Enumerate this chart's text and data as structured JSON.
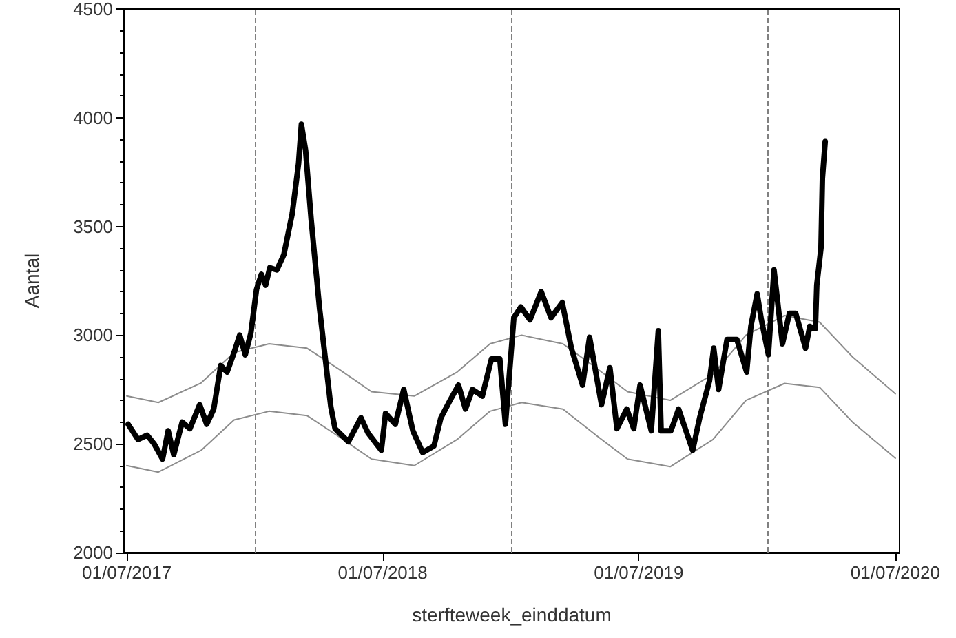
{
  "chart_data": {
    "type": "line",
    "xlabel": "sterfteweek_einddatum",
    "ylabel": "Aantal",
    "xlim": [
      "2017-06-27",
      "2020-07-07"
    ],
    "ylim": [
      2000,
      4500
    ],
    "xticks": [
      {
        "value": "2017-07-01",
        "label": "01/07/2017"
      },
      {
        "value": "2018-07-01",
        "label": "01/07/2018"
      },
      {
        "value": "2019-07-01",
        "label": "01/07/2019"
      },
      {
        "value": "2020-07-01",
        "label": "01/07/2020"
      }
    ],
    "yticks": [
      2000,
      2500,
      3000,
      3500,
      4000,
      4500
    ],
    "grid": false,
    "marker": "none",
    "line_style": "solid",
    "ref_lines": [
      {
        "axis": "x",
        "value": "2018-01-01",
        "color": "#808080",
        "line_style": "dashed"
      },
      {
        "axis": "x",
        "value": "2019-01-01",
        "color": "#808080",
        "line_style": "dashed"
      },
      {
        "axis": "x",
        "value": "2020-01-01",
        "color": "#808080",
        "line_style": "dashed"
      }
    ],
    "series": [
      {
        "color": "#000000",
        "x": [
          "2017-07-03",
          "2017-07-17",
          "2017-07-30",
          "2017-08-09",
          "2017-08-21",
          "2017-08-29",
          "2017-09-06",
          "2017-09-18",
          "2017-09-29",
          "2017-10-13",
          "2017-10-23",
          "2017-11-02",
          "2017-11-12",
          "2017-11-21",
          "2017-12-01",
          "2017-12-09",
          "2017-12-17",
          "2017-12-25",
          "2018-01-02",
          "2018-01-09",
          "2018-01-15",
          "2018-01-21",
          "2018-01-31",
          "2018-02-10",
          "2018-02-22",
          "2018-03-03",
          "2018-03-07",
          "2018-03-13",
          "2018-03-21",
          "2018-04-02",
          "2018-04-18",
          "2018-04-24",
          "2018-05-13",
          "2018-05-31",
          "2018-06-10",
          "2018-06-29",
          "2018-07-05",
          "2018-07-19",
          "2018-07-31",
          "2018-08-13",
          "2018-08-27",
          "2018-09-12",
          "2018-09-22",
          "2018-10-05",
          "2018-10-17",
          "2018-10-27",
          "2018-11-06",
          "2018-11-20",
          "2018-12-03",
          "2018-12-15",
          "2018-12-23",
          "2019-01-04",
          "2019-01-14",
          "2019-01-27",
          "2019-02-12",
          "2019-02-26",
          "2019-03-14",
          "2019-03-27",
          "2019-04-12",
          "2019-04-22",
          "2019-05-09",
          "2019-05-21",
          "2019-05-31",
          "2019-06-14",
          "2019-06-24",
          "2019-07-03",
          "2019-07-19",
          "2019-07-29",
          "2019-08-02",
          "2019-08-16",
          "2019-08-27",
          "2019-09-16",
          "2019-09-26",
          "2019-10-10",
          "2019-10-16",
          "2019-10-23",
          "2019-11-04",
          "2019-11-18",
          "2019-12-02",
          "2019-12-08",
          "2019-12-17",
          "2019-12-23",
          "2020-01-02",
          "2020-01-10",
          "2020-01-16",
          "2020-01-22",
          "2020-02-01",
          "2020-02-10",
          "2020-02-24",
          "2020-03-01",
          "2020-03-09",
          "2020-03-11",
          "2020-03-17",
          "2020-03-19",
          "2020-03-23"
        ],
        "values": [
          2590,
          2520,
          2540,
          2500,
          2430,
          2560,
          2450,
          2600,
          2570,
          2680,
          2590,
          2660,
          2860,
          2830,
          2920,
          3000,
          2910,
          3010,
          3210,
          3280,
          3230,
          3310,
          3300,
          3370,
          3560,
          3790,
          3970,
          3850,
          3530,
          3120,
          2670,
          2570,
          2510,
          2620,
          2550,
          2470,
          2640,
          2590,
          2750,
          2560,
          2460,
          2490,
          2620,
          2700,
          2770,
          2660,
          2750,
          2720,
          2890,
          2890,
          2590,
          3080,
          3130,
          3070,
          3200,
          3080,
          3150,
          2940,
          2770,
          2990,
          2680,
          2850,
          2570,
          2660,
          2570,
          2770,
          2560,
          3020,
          2560,
          2560,
          2660,
          2470,
          2620,
          2790,
          2940,
          2750,
          2980,
          2980,
          2830,
          3040,
          3190,
          3070,
          2910,
          3300,
          3130,
          2960,
          3100,
          3100,
          2940,
          3040,
          3030,
          3230,
          3400,
          3720,
          3890
        ]
      },
      {
        "color": "#8c8c8c",
        "x": [
          "2017-07-01",
          "2017-08-15",
          "2017-10-15",
          "2017-12-01",
          "2018-01-20",
          "2018-03-15",
          "2018-05-01",
          "2018-06-15",
          "2018-08-15",
          "2018-10-15",
          "2018-12-01",
          "2019-01-15",
          "2019-03-15",
          "2019-05-01",
          "2019-06-15",
          "2019-08-15",
          "2019-10-15",
          "2019-12-01",
          "2020-01-25",
          "2020-03-15",
          "2020-05-01",
          "2020-07-01"
        ],
        "values": [
          2720,
          2690,
          2780,
          2920,
          2960,
          2940,
          2840,
          2740,
          2720,
          2830,
          2960,
          3000,
          2960,
          2850,
          2740,
          2700,
          2820,
          3000,
          3090,
          3060,
          2900,
          2730
        ]
      },
      {
        "color": "#8c8c8c",
        "x": [
          "2017-07-01",
          "2017-08-15",
          "2017-10-15",
          "2017-12-01",
          "2018-01-20",
          "2018-03-15",
          "2018-05-01",
          "2018-06-15",
          "2018-08-15",
          "2018-10-15",
          "2018-12-01",
          "2019-01-15",
          "2019-03-15",
          "2019-05-01",
          "2019-06-15",
          "2019-08-15",
          "2019-10-15",
          "2019-12-01",
          "2020-01-25",
          "2020-03-15",
          "2020-05-01",
          "2020-07-01"
        ],
        "values": [
          2400,
          2370,
          2470,
          2610,
          2650,
          2630,
          2530,
          2430,
          2400,
          2520,
          2650,
          2690,
          2660,
          2540,
          2430,
          2395,
          2520,
          2700,
          2778,
          2760,
          2600,
          2434
        ]
      }
    ]
  }
}
